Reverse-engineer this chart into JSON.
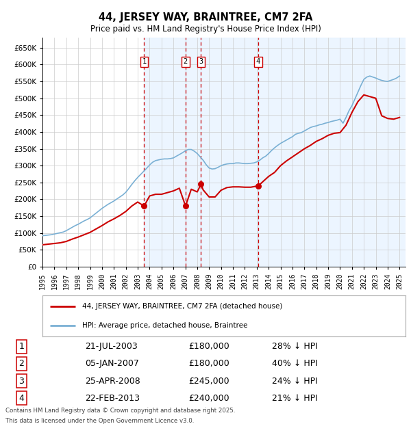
{
  "title": "44, JERSEY WAY, BRAINTREE, CM7 2FA",
  "subtitle": "Price paid vs. HM Land Registry's House Price Index (HPI)",
  "ylim": [
    0,
    680000
  ],
  "yticks": [
    0,
    50000,
    100000,
    150000,
    200000,
    250000,
    300000,
    350000,
    400000,
    450000,
    500000,
    550000,
    600000,
    650000
  ],
  "ytick_labels": [
    "£0",
    "£50K",
    "£100K",
    "£150K",
    "£200K",
    "£250K",
    "£300K",
    "£350K",
    "£400K",
    "£450K",
    "£500K",
    "£550K",
    "£600K",
    "£650K"
  ],
  "xlim_start": 1995.0,
  "xlim_end": 2025.5,
  "grid_color": "#cccccc",
  "transaction_color": "#cc0000",
  "hpi_color": "#7ab0d4",
  "shade_color": "#ddeeff",
  "transactions": [
    {
      "num": 1,
      "date_x": 2003.54,
      "price": 180000
    },
    {
      "num": 2,
      "date_x": 2007.02,
      "price": 180000
    },
    {
      "num": 3,
      "date_x": 2008.32,
      "price": 245000
    },
    {
      "num": 4,
      "date_x": 2013.13,
      "price": 240000
    }
  ],
  "table_rows": [
    {
      "num": 1,
      "date": "21-JUL-2003",
      "price": "£180,000",
      "hpi": "28% ↓ HPI"
    },
    {
      "num": 2,
      "date": "05-JAN-2007",
      "price": "£180,000",
      "hpi": "40% ↓ HPI"
    },
    {
      "num": 3,
      "date": "25-APR-2008",
      "price": "£245,000",
      "hpi": "24% ↓ HPI"
    },
    {
      "num": 4,
      "date": "22-FEB-2013",
      "price": "£240,000",
      "hpi": "21% ↓ HPI"
    }
  ],
  "legend_line1": "44, JERSEY WAY, BRAINTREE, CM7 2FA (detached house)",
  "legend_line2": "HPI: Average price, detached house, Braintree",
  "footer_line1": "Contains HM Land Registry data © Crown copyright and database right 2025.",
  "footer_line2": "This data is licensed under the Open Government Licence v3.0.",
  "hpi_x": [
    1995.0,
    1995.25,
    1995.5,
    1995.75,
    1996.0,
    1996.25,
    1996.5,
    1996.75,
    1997.0,
    1997.25,
    1997.5,
    1997.75,
    1998.0,
    1998.25,
    1998.5,
    1998.75,
    1999.0,
    1999.25,
    1999.5,
    1999.75,
    2000.0,
    2000.25,
    2000.5,
    2000.75,
    2001.0,
    2001.25,
    2001.5,
    2001.75,
    2002.0,
    2002.25,
    2002.5,
    2002.75,
    2003.0,
    2003.25,
    2003.5,
    2003.75,
    2004.0,
    2004.25,
    2004.5,
    2004.75,
    2005.0,
    2005.25,
    2005.5,
    2005.75,
    2006.0,
    2006.25,
    2006.5,
    2006.75,
    2007.0,
    2007.25,
    2007.5,
    2007.75,
    2008.0,
    2008.25,
    2008.5,
    2008.75,
    2009.0,
    2009.25,
    2009.5,
    2009.75,
    2010.0,
    2010.25,
    2010.5,
    2010.75,
    2011.0,
    2011.25,
    2011.5,
    2011.75,
    2012.0,
    2012.25,
    2012.5,
    2012.75,
    2013.0,
    2013.25,
    2013.5,
    2013.75,
    2014.0,
    2014.25,
    2014.5,
    2014.75,
    2015.0,
    2015.25,
    2015.5,
    2015.75,
    2016.0,
    2016.25,
    2016.5,
    2016.75,
    2017.0,
    2017.25,
    2017.5,
    2017.75,
    2018.0,
    2018.25,
    2018.5,
    2018.75,
    2019.0,
    2019.25,
    2019.5,
    2019.75,
    2020.0,
    2020.25,
    2020.5,
    2020.75,
    2021.0,
    2021.25,
    2021.5,
    2021.75,
    2022.0,
    2022.25,
    2022.5,
    2022.75,
    2023.0,
    2023.25,
    2023.5,
    2023.75,
    2024.0,
    2024.25,
    2024.5,
    2024.75,
    2025.0
  ],
  "hpi_y": [
    92000,
    93000,
    94000,
    95000,
    97000,
    99000,
    101000,
    103000,
    107000,
    112000,
    117000,
    122000,
    126000,
    131000,
    136000,
    140000,
    145000,
    152000,
    159000,
    166000,
    173000,
    179000,
    185000,
    190000,
    195000,
    201000,
    207000,
    213000,
    221000,
    232000,
    244000,
    255000,
    265000,
    274000,
    283000,
    292000,
    302000,
    310000,
    315000,
    317000,
    319000,
    320000,
    320000,
    321000,
    323000,
    328000,
    333000,
    338000,
    344000,
    348000,
    348000,
    343000,
    336000,
    326000,
    316000,
    303000,
    293000,
    290000,
    291000,
    295000,
    300000,
    303000,
    305000,
    306000,
    306000,
    308000,
    308000,
    307000,
    306000,
    306000,
    307000,
    308000,
    311000,
    316000,
    323000,
    328000,
    336000,
    345000,
    353000,
    360000,
    366000,
    371000,
    376000,
    381000,
    386000,
    393000,
    396000,
    398000,
    403000,
    408000,
    413000,
    416000,
    418000,
    421000,
    423000,
    426000,
    428000,
    431000,
    433000,
    435000,
    438000,
    426000,
    443000,
    463000,
    478000,
    498000,
    518000,
    538000,
    556000,
    563000,
    566000,
    563000,
    560000,
    556000,
    553000,
    551000,
    550000,
    553000,
    556000,
    560000,
    566000
  ],
  "price_x": [
    1995.0,
    1995.5,
    1996.0,
    1996.5,
    1997.0,
    1997.5,
    1998.0,
    1998.5,
    1999.0,
    1999.5,
    2000.0,
    2000.5,
    2001.0,
    2001.5,
    2002.0,
    2002.5,
    2003.0,
    2003.54,
    2004.0,
    2004.5,
    2005.0,
    2005.5,
    2006.0,
    2006.5,
    2007.02,
    2007.5,
    2008.0,
    2008.32,
    2008.5,
    2009.0,
    2009.5,
    2010.0,
    2010.5,
    2011.0,
    2011.5,
    2012.0,
    2012.5,
    2013.13,
    2013.5,
    2014.0,
    2014.5,
    2015.0,
    2015.5,
    2016.0,
    2016.5,
    2017.0,
    2017.5,
    2018.0,
    2018.5,
    2019.0,
    2019.5,
    2020.0,
    2020.5,
    2021.0,
    2021.5,
    2022.0,
    2022.5,
    2023.0,
    2023.5,
    2024.0,
    2024.5,
    2025.0
  ],
  "price_y": [
    65000,
    67000,
    69000,
    71000,
    75000,
    82000,
    88000,
    95000,
    102000,
    112000,
    122000,
    133000,
    142000,
    152000,
    164000,
    180000,
    192000,
    180000,
    210000,
    215000,
    215000,
    220000,
    225000,
    233000,
    180000,
    230000,
    222000,
    245000,
    228000,
    207000,
    207000,
    227000,
    235000,
    237000,
    237000,
    236000,
    236000,
    240000,
    252000,
    268000,
    280000,
    300000,
    314000,
    326000,
    338000,
    350000,
    360000,
    372000,
    380000,
    390000,
    396000,
    398000,
    420000,
    458000,
    490000,
    510000,
    505000,
    500000,
    448000,
    440000,
    438000,
    443000
  ]
}
